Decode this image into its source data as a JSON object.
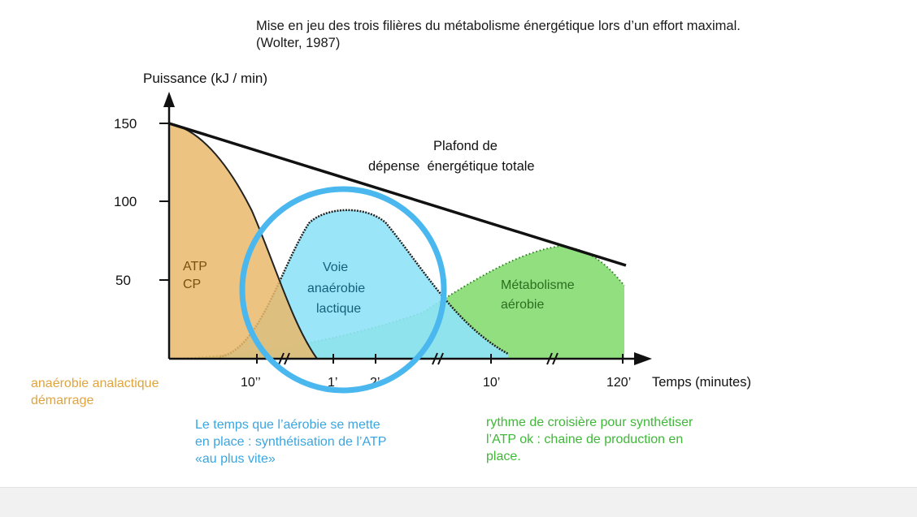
{
  "title": {
    "line1": "Mise en jeu des trois filières du métabolisme énergétique lors d’un effort maximal.",
    "line2": "(Wolter, 1987)"
  },
  "chart_data": {
    "type": "area",
    "ylabel": "Puissance (kJ / min)",
    "xlabel": "Temps (minutes)",
    "ylim": [
      0,
      150
    ],
    "y_ticks": [
      "150",
      "100",
      "50"
    ],
    "x_ticks": [
      "10’’",
      "1’",
      "2’",
      "10’",
      "120’"
    ],
    "x_scale": "broken",
    "series": [
      {
        "name": "ATP CP",
        "color": "#e8b86a",
        "x": [
          "0",
          "10’’",
          "1’"
        ],
        "y": [
          150,
          100,
          0
        ]
      },
      {
        "name": "Voie anaérobie lactique",
        "color": "#8fe0f5",
        "x": [
          "10’’",
          "1’",
          "2’",
          "10’"
        ],
        "y": [
          5,
          90,
          85,
          5
        ]
      },
      {
        "name": "Métabolisme aérobie",
        "color": "#78d85a",
        "x": [
          "0",
          "1’",
          "10’",
          "120’"
        ],
        "y": [
          0,
          20,
          60,
          50
        ]
      }
    ],
    "ceiling_label": [
      "Plafond de",
      "dépense  énergétique totale"
    ],
    "ceiling": {
      "x": [
        "0",
        "120’"
      ],
      "y": [
        150,
        60
      ]
    },
    "series_labels": {
      "atp": [
        "ATP",
        "CP"
      ],
      "lactique": [
        "Voie",
        "anaérobie",
        "lactique"
      ],
      "aerobie": [
        "Métabolisme",
        "aérobie"
      ]
    },
    "highlight": {
      "color": "#4ab8ee",
      "shape": "circle"
    }
  },
  "annotations": {
    "orange": {
      "color": "#e0a43f",
      "lines": [
        "anaérobie analactique",
        "démarrage"
      ]
    },
    "blue": {
      "color": "#3aa6e0",
      "lines": [
        "Le temps que l’aérobie se mette",
        "en place : synthétisation de l’ATP",
        "«au plus vite»"
      ]
    },
    "green": {
      "color": "#3fb838",
      "lines": [
        "rythme de croisière pour synthétiser",
        "l’ATP ok : chaine de production en",
        "place."
      ]
    }
  }
}
